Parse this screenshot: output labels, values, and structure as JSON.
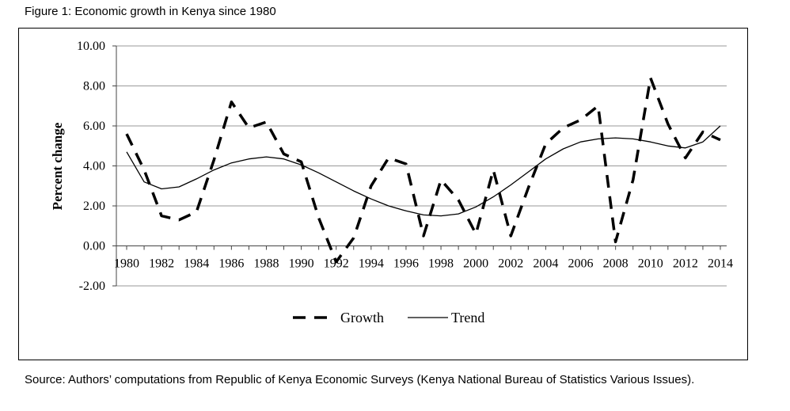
{
  "figure_title": "Figure 1: Economic growth in Kenya since 1980",
  "source_note": "Source: Authors’ computations from Republic of Kenya Economic Surveys (Kenya National Bureau of Statistics Various Issues).",
  "chart_data": {
    "type": "line",
    "title": "Figure 1: Economic growth in Kenya since 1980",
    "xlabel": "",
    "ylabel": "Percent change",
    "ylim": [
      -2,
      10
    ],
    "yticks": [
      "10.00",
      "8.00",
      "6.00",
      "4.00",
      "2.00",
      "0.00",
      "-2.00"
    ],
    "ytick_values": [
      10,
      8,
      6,
      4,
      2,
      0,
      -2
    ],
    "xtick_labels": [
      "1980",
      "1982",
      "1984",
      "1986",
      "1988",
      "1990",
      "1992",
      "1994",
      "1996",
      "1998",
      "2000",
      "2002",
      "2004",
      "2006",
      "2008",
      "2010",
      "2012",
      "2014"
    ],
    "x": [
      1980,
      1981,
      1982,
      1983,
      1984,
      1985,
      1986,
      1987,
      1988,
      1989,
      1990,
      1991,
      1992,
      1993,
      1994,
      1995,
      1996,
      1997,
      1998,
      1999,
      2000,
      2001,
      2002,
      2003,
      2004,
      2005,
      2006,
      2007,
      2008,
      2009,
      2010,
      2011,
      2012,
      2013,
      2014
    ],
    "grid": true,
    "legend_position": "bottom",
    "series": [
      {
        "name": "Growth",
        "style": "dashed",
        "values": [
          5.6,
          3.8,
          1.5,
          1.3,
          1.7,
          4.3,
          7.2,
          5.9,
          6.2,
          4.6,
          4.2,
          1.4,
          -0.8,
          0.4,
          3.0,
          4.4,
          4.1,
          0.5,
          3.3,
          2.3,
          0.6,
          3.8,
          0.5,
          2.9,
          5.1,
          5.9,
          6.3,
          7.0,
          0.2,
          3.3,
          8.4,
          6.1,
          4.4,
          5.7,
          5.3
        ]
      },
      {
        "name": "Trend",
        "style": "solid",
        "values": [
          4.7,
          3.2,
          2.85,
          2.95,
          3.35,
          3.8,
          4.15,
          4.35,
          4.45,
          4.35,
          4.05,
          3.65,
          3.2,
          2.75,
          2.35,
          2.0,
          1.75,
          1.55,
          1.5,
          1.6,
          1.95,
          2.45,
          3.05,
          3.7,
          4.35,
          4.85,
          5.2,
          5.35,
          5.4,
          5.35,
          5.2,
          5.0,
          4.9,
          5.2,
          6.0
        ]
      }
    ]
  }
}
